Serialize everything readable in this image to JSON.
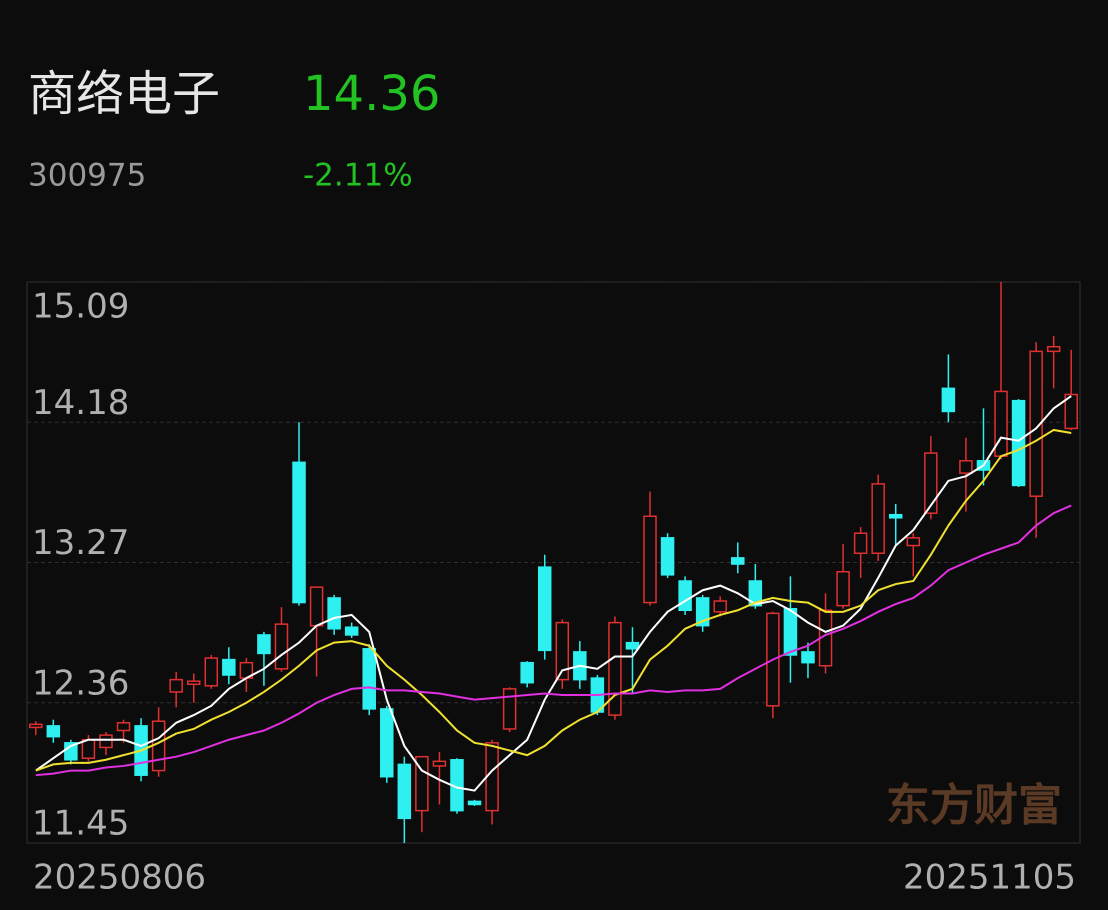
{
  "header": {
    "name": "商络电子",
    "price": "14.36",
    "code": "300975",
    "change": "-2.11%"
  },
  "watermark": "东方财富",
  "chart_data": {
    "type": "candlestick",
    "categories": [
      "20250806",
      null,
      null,
      null,
      null,
      null,
      null,
      null,
      null,
      null,
      null,
      null,
      null,
      null,
      null,
      null,
      null,
      null,
      null,
      null,
      null,
      null,
      null,
      null,
      null,
      null,
      null,
      null,
      null,
      null,
      null,
      null,
      null,
      null,
      null,
      null,
      null,
      null,
      null,
      null,
      null,
      null,
      null,
      null,
      null,
      null,
      null,
      null,
      null,
      null,
      null,
      null,
      null,
      null,
      null,
      null,
      null,
      null,
      null,
      "20251105"
    ],
    "open": [
      12.2,
      12.21,
      12.1,
      12.0,
      12.07,
      12.18,
      12.21,
      11.92,
      12.43,
      12.48,
      12.47,
      12.64,
      12.52,
      12.8,
      12.58,
      13.92,
      12.86,
      13.04,
      12.85,
      12.71,
      12.32,
      11.96,
      11.66,
      11.95,
      11.99,
      11.72,
      11.66,
      12.19,
      12.62,
      13.24,
      12.51,
      12.69,
      12.52,
      12.28,
      12.75,
      13.01,
      13.43,
      13.15,
      13.04,
      12.95,
      13.3,
      13.15,
      12.34,
      12.97,
      12.69,
      12.6,
      12.99,
      13.33,
      13.33,
      13.58,
      13.38,
      13.59,
      14.4,
      13.85,
      13.93,
      13.96,
      14.32,
      13.7,
      14.64,
      14.14
    ],
    "high": [
      12.24,
      12.25,
      12.12,
      12.15,
      12.17,
      12.25,
      12.26,
      12.33,
      12.56,
      12.55,
      12.67,
      12.72,
      12.65,
      12.82,
      12.98,
      14.18,
      13.11,
      13.06,
      12.88,
      12.74,
      12.34,
      12.01,
      12.01,
      12.04,
      12.0,
      11.73,
      12.12,
      12.46,
      12.63,
      13.32,
      12.9,
      12.76,
      12.54,
      12.92,
      12.85,
      13.73,
      13.46,
      13.18,
      13.06,
      13.05,
      13.4,
      13.26,
      12.95,
      13.18,
      12.75,
      13.07,
      13.39,
      13.5,
      13.84,
      13.65,
      13.46,
      14.09,
      14.62,
      14.08,
      14.27,
      15.09,
      14.33,
      14.7,
      14.74,
      14.65
    ],
    "low": [
      12.15,
      12.1,
      11.96,
      11.98,
      12.02,
      12.1,
      11.85,
      11.88,
      12.33,
      12.36,
      12.45,
      12.48,
      12.43,
      12.47,
      12.56,
      12.99,
      12.53,
      12.8,
      12.78,
      12.28,
      11.84,
      11.45,
      11.52,
      11.7,
      11.64,
      11.69,
      11.57,
      12.17,
      12.46,
      12.64,
      12.45,
      12.45,
      12.28,
      12.25,
      12.42,
      12.99,
      13.17,
      12.93,
      12.82,
      12.92,
      13.2,
      12.97,
      12.26,
      12.49,
      12.52,
      12.55,
      12.97,
      13.17,
      13.28,
      13.38,
      13.18,
      13.55,
      14.18,
      13.6,
      13.77,
      13.94,
      13.76,
      13.43,
      14.4,
      14.13
    ],
    "close": [
      12.22,
      12.14,
      11.99,
      12.12,
      12.15,
      12.23,
      11.89,
      12.24,
      12.51,
      12.5,
      12.65,
      12.54,
      12.62,
      12.68,
      12.87,
      13.01,
      13.11,
      12.84,
      12.8,
      12.32,
      11.88,
      11.61,
      12.01,
      11.98,
      11.66,
      11.7,
      12.1,
      12.45,
      12.49,
      12.7,
      12.88,
      12.51,
      12.3,
      12.88,
      12.71,
      13.57,
      13.19,
      12.96,
      12.86,
      13.02,
      13.26,
      12.99,
      12.94,
      12.67,
      12.62,
      12.96,
      13.21,
      13.46,
      13.78,
      13.56,
      13.43,
      13.98,
      14.25,
      13.93,
      13.87,
      14.38,
      13.77,
      14.64,
      14.67,
      14.36
    ],
    "up_color": "#e03030",
    "down_color": "#2ff0f0",
    "lines": [
      {
        "color": "#ffffff",
        "values": [
          11.92,
          12.0,
          12.08,
          12.12,
          12.12,
          12.12,
          12.08,
          12.13,
          12.23,
          12.28,
          12.34,
          12.45,
          12.52,
          12.58,
          12.67,
          12.75,
          12.86,
          12.91,
          12.93,
          12.82,
          12.38,
          12.08,
          11.92,
          11.86,
          11.81,
          11.79,
          11.92,
          12.02,
          12.12,
          12.38,
          12.57,
          12.6,
          12.58,
          12.66,
          12.66,
          12.82,
          12.95,
          13.02,
          13.09,
          13.12,
          13.07,
          13.0,
          13.02,
          12.96,
          12.88,
          12.82,
          12.86,
          12.97,
          13.17,
          13.38,
          13.48,
          13.64,
          13.8,
          13.83,
          13.9,
          14.08,
          14.06,
          14.14,
          14.27,
          14.35
        ]
      },
      {
        "color": "#f0e030",
        "values": [
          11.92,
          11.96,
          11.97,
          11.97,
          11.99,
          12.02,
          12.05,
          12.1,
          12.16,
          12.19,
          12.25,
          12.3,
          12.36,
          12.43,
          12.51,
          12.6,
          12.7,
          12.75,
          12.76,
          12.73,
          12.6,
          12.51,
          12.41,
          12.3,
          12.18,
          12.1,
          12.08,
          12.05,
          12.02,
          12.08,
          12.18,
          12.25,
          12.3,
          12.41,
          12.45,
          12.64,
          12.73,
          12.84,
          12.89,
          12.93,
          12.96,
          13.01,
          13.04,
          13.02,
          13.01,
          12.95,
          12.95,
          12.99,
          13.09,
          13.13,
          13.15,
          13.32,
          13.51,
          13.67,
          13.8,
          13.96,
          14.0,
          14.06,
          14.13,
          14.11
        ]
      },
      {
        "color": "#e030e0",
        "values": [
          11.89,
          11.9,
          11.92,
          11.92,
          11.94,
          11.95,
          11.97,
          11.99,
          12.01,
          12.04,
          12.08,
          12.12,
          12.15,
          12.18,
          12.23,
          12.29,
          12.36,
          12.41,
          12.45,
          12.46,
          12.44,
          12.44,
          12.43,
          12.42,
          12.4,
          12.38,
          12.39,
          12.4,
          12.41,
          12.42,
          12.41,
          12.41,
          12.41,
          12.42,
          12.42,
          12.44,
          12.43,
          12.44,
          12.44,
          12.45,
          12.52,
          12.58,
          12.64,
          12.69,
          12.73,
          12.8,
          12.84,
          12.89,
          12.95,
          13.0,
          13.04,
          13.12,
          13.22,
          13.27,
          13.32,
          13.36,
          13.4,
          13.51,
          13.59,
          13.64
        ]
      }
    ],
    "ylim": [
      11.45,
      15.09
    ],
    "yticks": [
      15.09,
      14.18,
      13.27,
      12.36,
      11.45
    ],
    "grid": true
  }
}
